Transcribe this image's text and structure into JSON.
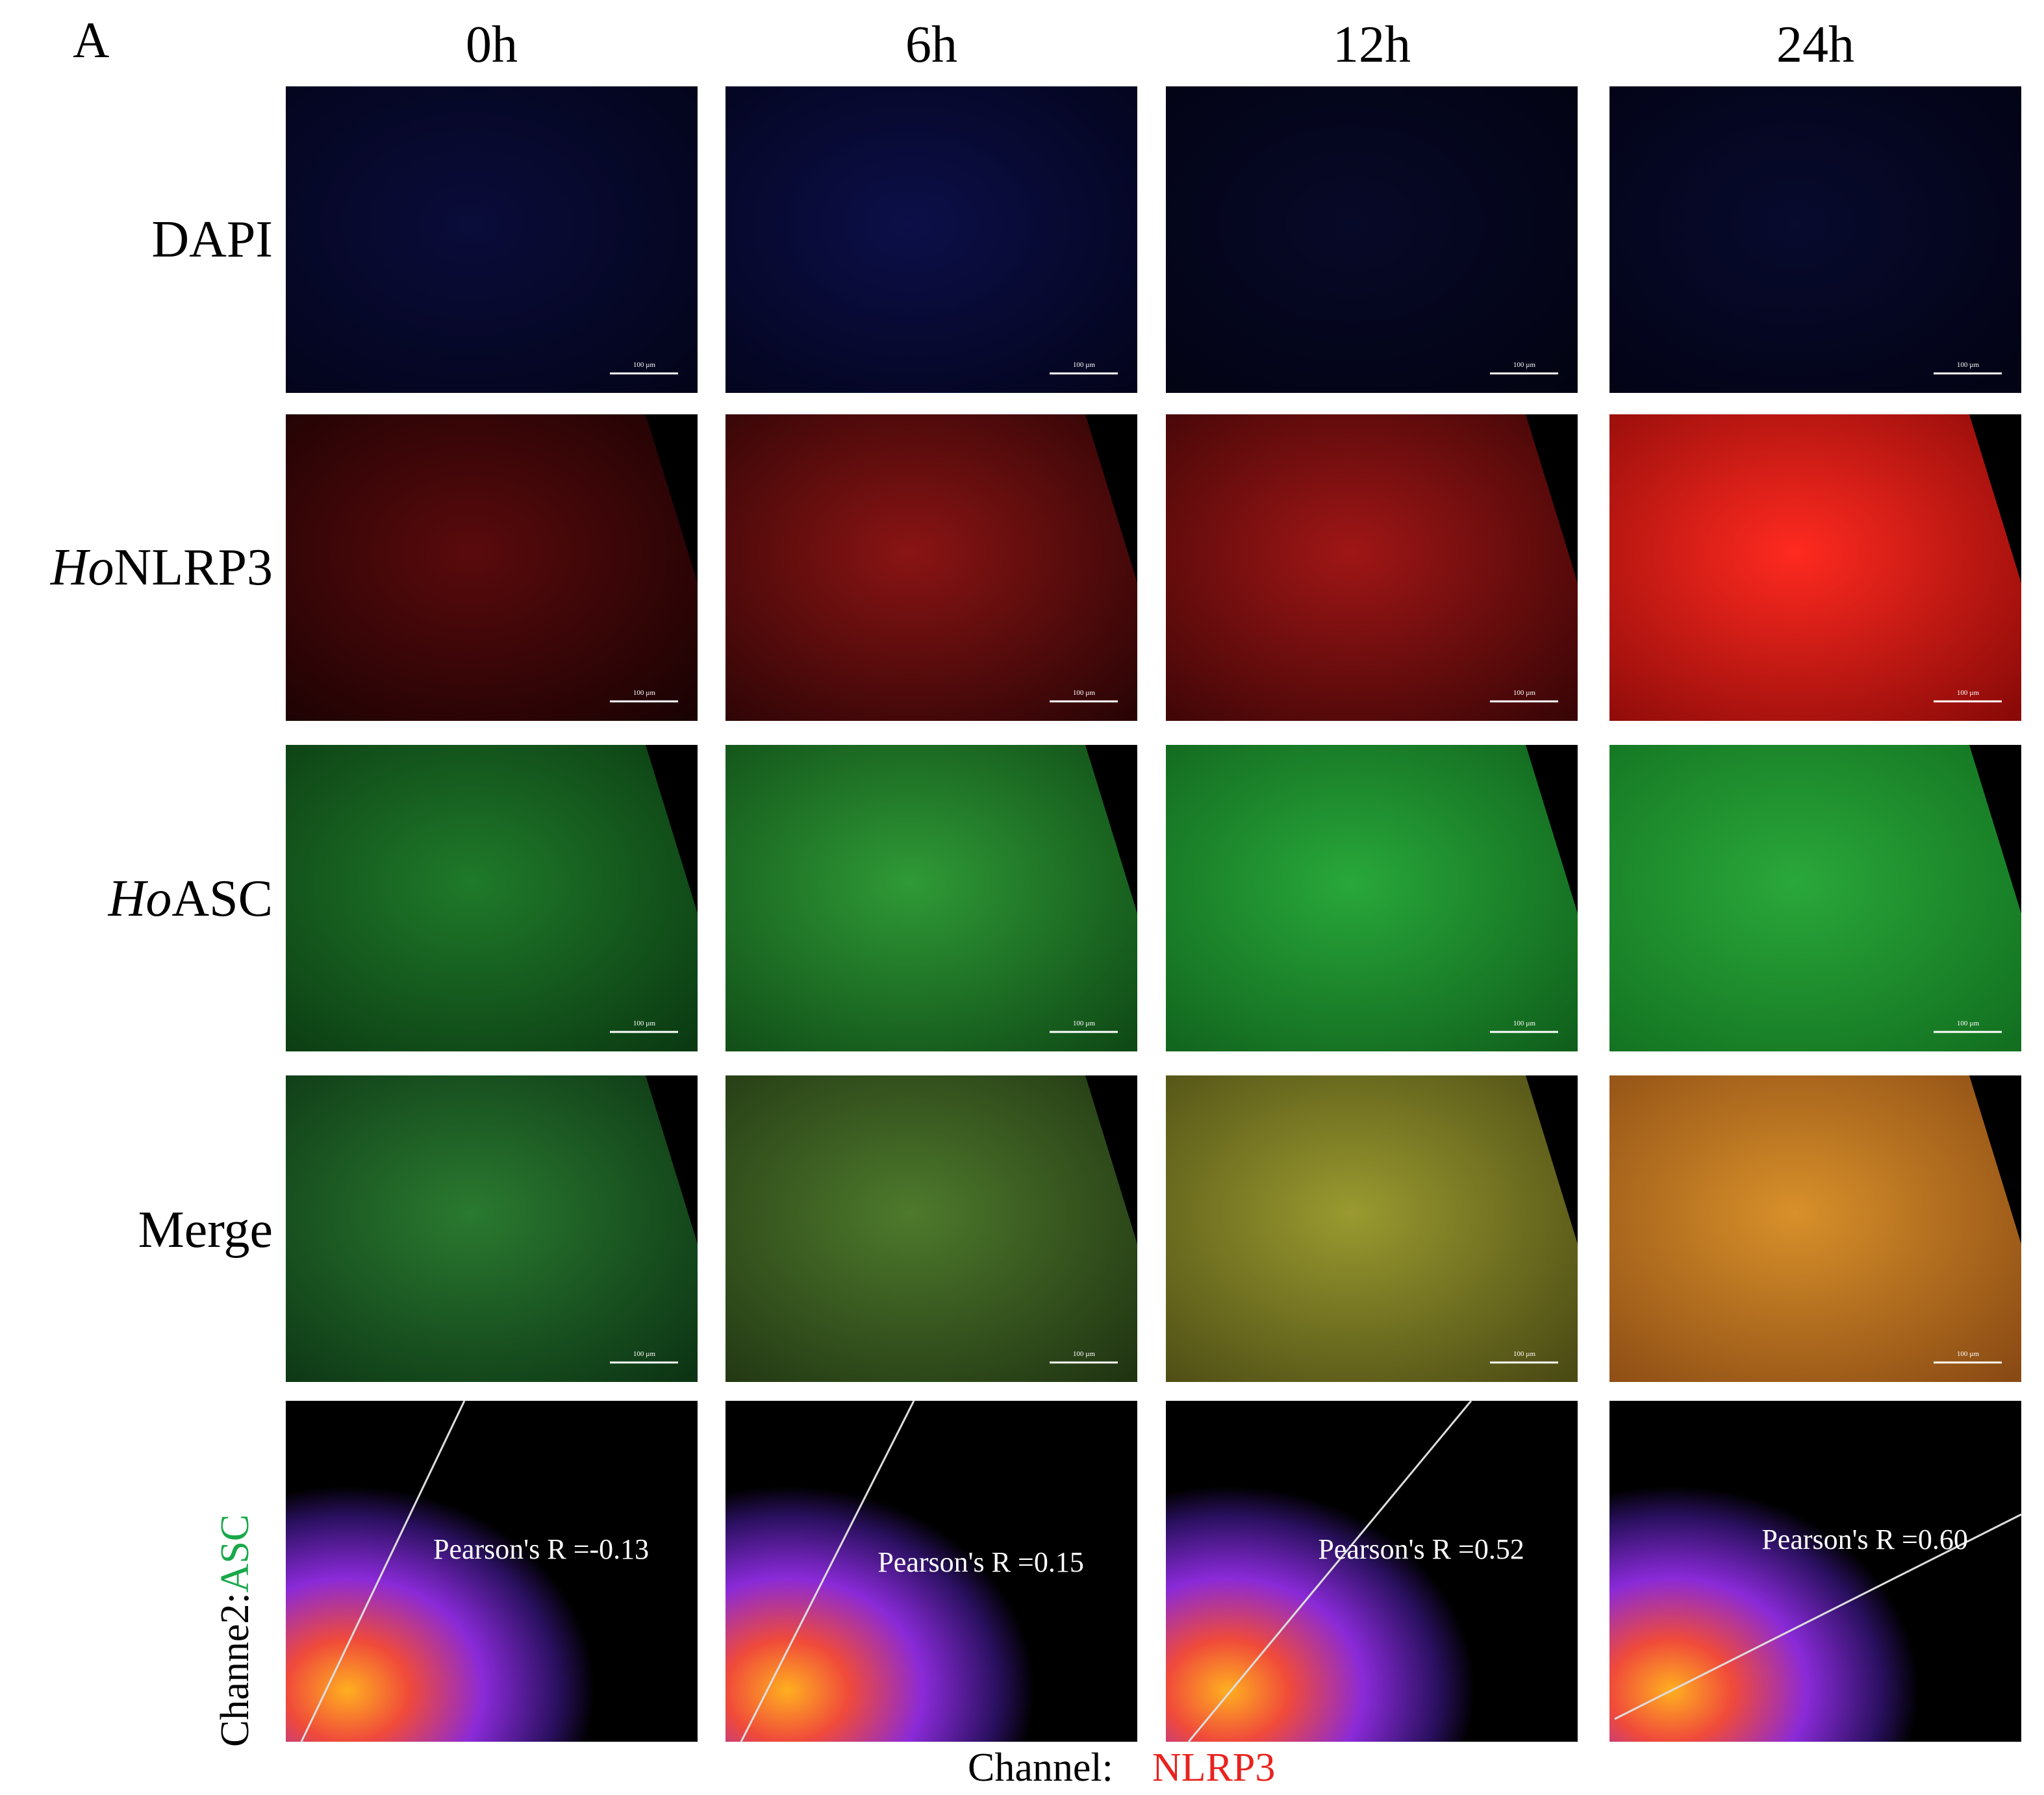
{
  "panel_label": "A",
  "columns": [
    "0h",
    "6h",
    "12h",
    "24h"
  ],
  "rows": [
    {
      "italic": "",
      "text": "DAPI"
    },
    {
      "italic": "Ho",
      "text": "NLRP3"
    },
    {
      "italic": "Ho",
      "text": "ASC"
    },
    {
      "italic": "",
      "text": "Merge"
    }
  ],
  "scale_bar": "100 µm",
  "scatter": {
    "labels": [
      "Pearson's R =-0.13",
      "Pearson's R =0.15",
      "Pearson's R =0.52",
      "Pearson's R =0.60"
    ],
    "y_label": {
      "prefix": "Channe2:",
      "channel": "ASC"
    },
    "x_label": {
      "prefix": "Channel:",
      "channel": "NLRP3"
    }
  }
}
